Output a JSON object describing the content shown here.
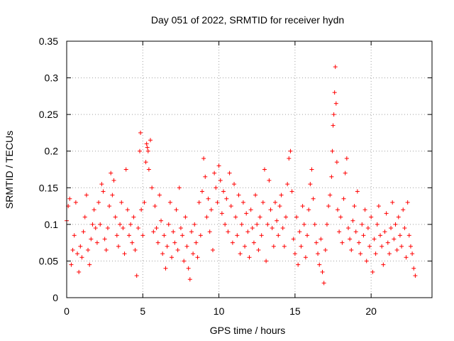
{
  "chart_data": {
    "type": "scatter",
    "title": "Day 051 of 2022, SRMTID for receiver hydn",
    "xlabel": "GPS time / hours",
    "ylabel": "SRMTID / TECUs",
    "xlim": [
      0,
      24
    ],
    "ylim": [
      0,
      0.35
    ],
    "xticks": [
      0,
      5,
      10,
      15,
      20
    ],
    "xtick_labels": [
      "0",
      "5",
      "10",
      "15",
      "20"
    ],
    "yticks": [
      0,
      0.05,
      0.1,
      0.15,
      0.2,
      0.25,
      0.3,
      0.35
    ],
    "ytick_labels": [
      "0",
      "0.05",
      "0.1",
      "0.15",
      "0.2",
      "0.25",
      "0.3",
      "0.35"
    ],
    "grid": true,
    "marker": "plus",
    "color": "#ff0000",
    "series": [
      {
        "name": "SRMTID",
        "points": [
          [
            0.0,
            0.105
          ],
          [
            0.1,
            0.125
          ],
          [
            0.2,
            0.135
          ],
          [
            0.3,
            0.045
          ],
          [
            0.4,
            0.065
          ],
          [
            0.5,
            0.085
          ],
          [
            0.6,
            0.13
          ],
          [
            0.7,
            0.06
          ],
          [
            0.8,
            0.035
          ],
          [
            0.9,
            0.07
          ],
          [
            1.0,
            0.055
          ],
          [
            1.1,
            0.09
          ],
          [
            1.2,
            0.11
          ],
          [
            1.3,
            0.14
          ],
          [
            1.4,
            0.065
          ],
          [
            1.5,
            0.045
          ],
          [
            1.6,
            0.08
          ],
          [
            1.7,
            0.1
          ],
          [
            1.8,
            0.12
          ],
          [
            1.9,
            0.095
          ],
          [
            2.0,
            0.075
          ],
          [
            2.1,
            0.13
          ],
          [
            2.2,
            0.1
          ],
          [
            2.3,
            0.155
          ],
          [
            2.4,
            0.145
          ],
          [
            2.5,
            0.08
          ],
          [
            2.6,
            0.065
          ],
          [
            2.7,
            0.095
          ],
          [
            2.8,
            0.125
          ],
          [
            2.9,
            0.17
          ],
          [
            3.0,
            0.14
          ],
          [
            3.1,
            0.16
          ],
          [
            3.2,
            0.11
          ],
          [
            3.3,
            0.085
          ],
          [
            3.4,
            0.07
          ],
          [
            3.5,
            0.1
          ],
          [
            3.6,
            0.13
          ],
          [
            3.7,
            0.095
          ],
          [
            3.8,
            0.06
          ],
          [
            3.9,
            0.175
          ],
          [
            4.0,
            0.12
          ],
          [
            4.1,
            0.085
          ],
          [
            4.2,
            0.1
          ],
          [
            4.3,
            0.075
          ],
          [
            4.4,
            0.11
          ],
          [
            4.5,
            0.065
          ],
          [
            4.6,
            0.03
          ],
          [
            4.7,
            0.095
          ],
          [
            4.8,
            0.2
          ],
          [
            4.85,
            0.225
          ],
          [
            4.9,
            0.12
          ],
          [
            5.0,
            0.085
          ],
          [
            5.1,
            0.13
          ],
          [
            5.2,
            0.185
          ],
          [
            5.25,
            0.21
          ],
          [
            5.3,
            0.205
          ],
          [
            5.35,
            0.2
          ],
          [
            5.4,
            0.175
          ],
          [
            5.5,
            0.215
          ],
          [
            5.6,
            0.15
          ],
          [
            5.7,
            0.09
          ],
          [
            5.8,
            0.125
          ],
          [
            5.9,
            0.095
          ],
          [
            6.0,
            0.075
          ],
          [
            6.1,
            0.14
          ],
          [
            6.2,
            0.105
          ],
          [
            6.3,
            0.06
          ],
          [
            6.4,
            0.085
          ],
          [
            6.5,
            0.04
          ],
          [
            6.6,
            0.07
          ],
          [
            6.7,
            0.1
          ],
          [
            6.8,
            0.13
          ],
          [
            6.9,
            0.055
          ],
          [
            7.0,
            0.09
          ],
          [
            7.1,
            0.075
          ],
          [
            7.2,
            0.12
          ],
          [
            7.3,
            0.065
          ],
          [
            7.4,
            0.15
          ],
          [
            7.5,
            0.095
          ],
          [
            7.6,
            0.085
          ],
          [
            7.7,
            0.05
          ],
          [
            7.8,
            0.11
          ],
          [
            7.9,
            0.07
          ],
          [
            8.0,
            0.04
          ],
          [
            8.1,
            0.025
          ],
          [
            8.2,
            0.09
          ],
          [
            8.3,
            0.06
          ],
          [
            8.4,
            0.1
          ],
          [
            8.5,
            0.075
          ],
          [
            8.6,
            0.055
          ],
          [
            8.7,
            0.13
          ],
          [
            8.8,
            0.085
          ],
          [
            8.9,
            0.145
          ],
          [
            9.0,
            0.19
          ],
          [
            9.1,
            0.165
          ],
          [
            9.2,
            0.11
          ],
          [
            9.3,
            0.135
          ],
          [
            9.4,
            0.09
          ],
          [
            9.5,
            0.12
          ],
          [
            9.6,
            0.065
          ],
          [
            9.7,
            0.17
          ],
          [
            9.8,
            0.15
          ],
          [
            9.9,
            0.13
          ],
          [
            10.0,
            0.18
          ],
          [
            10.1,
            0.16
          ],
          [
            10.2,
            0.115
          ],
          [
            10.3,
            0.145
          ],
          [
            10.4,
            0.1
          ],
          [
            10.5,
            0.135
          ],
          [
            10.6,
            0.09
          ],
          [
            10.7,
            0.17
          ],
          [
            10.8,
            0.125
          ],
          [
            10.9,
            0.075
          ],
          [
            11.0,
            0.155
          ],
          [
            11.1,
            0.11
          ],
          [
            11.2,
            0.085
          ],
          [
            11.3,
            0.14
          ],
          [
            11.4,
            0.06
          ],
          [
            11.5,
            0.1
          ],
          [
            11.6,
            0.13
          ],
          [
            11.7,
            0.07
          ],
          [
            11.8,
            0.115
          ],
          [
            11.9,
            0.09
          ],
          [
            12.0,
            0.055
          ],
          [
            12.1,
            0.12
          ],
          [
            12.2,
            0.095
          ],
          [
            12.3,
            0.075
          ],
          [
            12.4,
            0.14
          ],
          [
            12.5,
            0.1
          ],
          [
            12.6,
            0.065
          ],
          [
            12.7,
            0.11
          ],
          [
            12.8,
            0.085
          ],
          [
            12.9,
            0.13
          ],
          [
            13.0,
            0.175
          ],
          [
            13.1,
            0.05
          ],
          [
            13.2,
            0.1
          ],
          [
            13.3,
            0.16
          ],
          [
            13.4,
            0.12
          ],
          [
            13.5,
            0.095
          ],
          [
            13.6,
            0.07
          ],
          [
            13.7,
            0.13
          ],
          [
            13.8,
            0.105
          ],
          [
            13.9,
            0.085
          ],
          [
            14.0,
            0.125
          ],
          [
            14.1,
            0.14
          ],
          [
            14.2,
            0.095
          ],
          [
            14.3,
            0.07
          ],
          [
            14.4,
            0.11
          ],
          [
            14.5,
            0.155
          ],
          [
            14.6,
            0.19
          ],
          [
            14.7,
            0.2
          ],
          [
            14.8,
            0.145
          ],
          [
            14.9,
            0.08
          ],
          [
            15.0,
            0.06
          ],
          [
            15.1,
            0.11
          ],
          [
            15.2,
            0.045
          ],
          [
            15.3,
            0.09
          ],
          [
            15.4,
            0.07
          ],
          [
            15.5,
            0.125
          ],
          [
            15.6,
            0.1
          ],
          [
            15.7,
            0.055
          ],
          [
            15.8,
            0.085
          ],
          [
            15.9,
            0.12
          ],
          [
            16.0,
            0.155
          ],
          [
            16.1,
            0.175
          ],
          [
            16.2,
            0.135
          ],
          [
            16.3,
            0.1
          ],
          [
            16.4,
            0.075
          ],
          [
            16.5,
            0.06
          ],
          [
            16.6,
            0.045
          ],
          [
            16.7,
            0.08
          ],
          [
            16.8,
            0.035
          ],
          [
            16.9,
            0.02
          ],
          [
            17.0,
            0.065
          ],
          [
            17.1,
            0.1
          ],
          [
            17.2,
            0.125
          ],
          [
            17.3,
            0.14
          ],
          [
            17.4,
            0.165
          ],
          [
            17.45,
            0.2
          ],
          [
            17.5,
            0.235
          ],
          [
            17.55,
            0.25
          ],
          [
            17.6,
            0.28
          ],
          [
            17.65,
            0.315
          ],
          [
            17.7,
            0.265
          ],
          [
            17.75,
            0.185
          ],
          [
            17.8,
            0.12
          ],
          [
            17.9,
            0.09
          ],
          [
            18.0,
            0.11
          ],
          [
            18.1,
            0.075
          ],
          [
            18.2,
            0.135
          ],
          [
            18.3,
            0.17
          ],
          [
            18.4,
            0.19
          ],
          [
            18.5,
            0.095
          ],
          [
            18.6,
            0.08
          ],
          [
            18.7,
            0.065
          ],
          [
            18.8,
            0.105
          ],
          [
            18.9,
            0.125
          ],
          [
            19.0,
            0.09
          ],
          [
            19.1,
            0.145
          ],
          [
            19.2,
            0.075
          ],
          [
            19.3,
            0.06
          ],
          [
            19.4,
            0.1
          ],
          [
            19.5,
            0.085
          ],
          [
            19.6,
            0.12
          ],
          [
            19.7,
            0.05
          ],
          [
            19.8,
            0.095
          ],
          [
            19.9,
            0.07
          ],
          [
            20.0,
            0.11
          ],
          [
            20.1,
            0.035
          ],
          [
            20.2,
            0.08
          ],
          [
            20.3,
            0.06
          ],
          [
            20.4,
            0.1
          ],
          [
            20.5,
            0.125
          ],
          [
            20.6,
            0.085
          ],
          [
            20.7,
            0.07
          ],
          [
            20.8,
            0.045
          ],
          [
            20.9,
            0.09
          ],
          [
            21.0,
            0.115
          ],
          [
            21.1,
            0.075
          ],
          [
            21.2,
            0.06
          ],
          [
            21.3,
            0.095
          ],
          [
            21.4,
            0.13
          ],
          [
            21.5,
            0.08
          ],
          [
            21.6,
            0.1
          ],
          [
            21.7,
            0.065
          ],
          [
            21.8,
            0.11
          ],
          [
            21.9,
            0.085
          ],
          [
            22.0,
            0.07
          ],
          [
            22.1,
            0.12
          ],
          [
            22.2,
            0.095
          ],
          [
            22.3,
            0.055
          ],
          [
            22.4,
            0.13
          ],
          [
            22.5,
            0.085
          ],
          [
            22.6,
            0.07
          ],
          [
            22.7,
            0.06
          ],
          [
            22.8,
            0.04
          ],
          [
            22.9,
            0.03
          ]
        ]
      }
    ]
  }
}
